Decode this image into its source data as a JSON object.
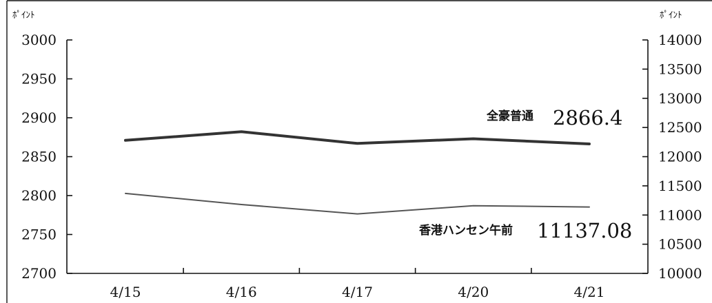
{
  "chart_data": {
    "type": "line",
    "categories": [
      "4/15",
      "4/16",
      "4/17",
      "4/20",
      "4/21"
    ],
    "y_left": {
      "unit_label": "ﾎﾟｲﾝﾄ",
      "range": [
        2700,
        3000
      ],
      "ticks": [
        2700,
        2750,
        2800,
        2850,
        2900,
        2950,
        3000
      ]
    },
    "y_right": {
      "unit_label": "ﾎﾟｲﾝﾄ",
      "range": [
        10000,
        14000
      ],
      "ticks": [
        10000,
        10500,
        11000,
        11500,
        12000,
        12500,
        13000,
        13500,
        14000
      ]
    },
    "series": [
      {
        "name": "全豪普通",
        "axis": "left",
        "latest_value_label": "2866.4",
        "values": [
          2871,
          2882,
          2867,
          2873,
          2866.4
        ],
        "color": "#333333",
        "style": "thick"
      },
      {
        "name": "香港ハンセン午前",
        "axis": "right",
        "latest_value_label": "11137.08",
        "values": [
          11370,
          11180,
          11020,
          11160,
          11137.08
        ],
        "color": "#555555",
        "style": "thin"
      }
    ],
    "grid": false,
    "legend": "inline labels near line ends"
  }
}
